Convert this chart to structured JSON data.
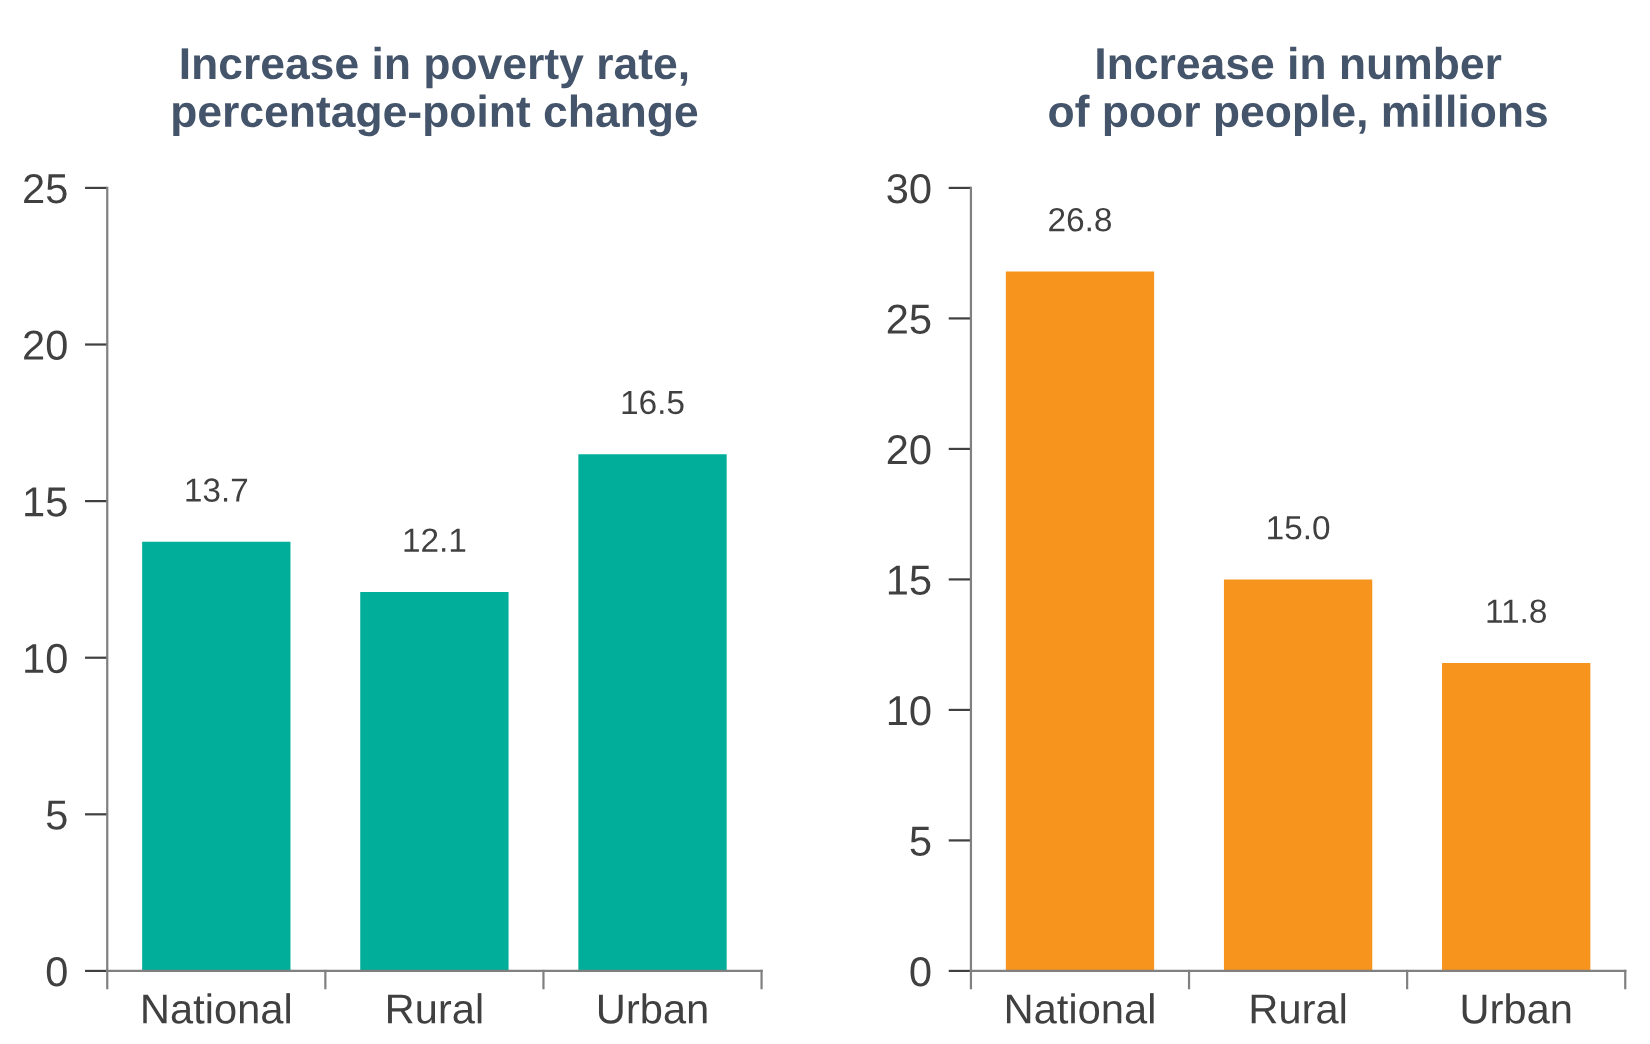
{
  "chart_data": [
    {
      "type": "bar",
      "title": "Increase in poverty rate,\npercentage-point change",
      "categories": [
        "National",
        "Rural",
        "Urban"
      ],
      "values": [
        13.7,
        12.1,
        16.5
      ],
      "color": "#00ae9a",
      "ylim": [
        0,
        25
      ],
      "yticks": [
        0,
        5,
        10,
        15,
        20,
        25
      ],
      "data_labels": true,
      "grid": false,
      "legend": false
    },
    {
      "type": "bar",
      "title": "Increase in number\nof poor people, millions",
      "categories": [
        "National",
        "Rural",
        "Urban"
      ],
      "values": [
        26.8,
        15.0,
        11.8
      ],
      "value_labels": [
        "26.8",
        "15.0",
        "11.8"
      ],
      "color": "#f7941d",
      "ylim": [
        0,
        30
      ],
      "yticks": [
        0,
        5,
        10,
        15,
        20,
        25,
        30
      ],
      "grid": false,
      "legend": false
    }
  ]
}
